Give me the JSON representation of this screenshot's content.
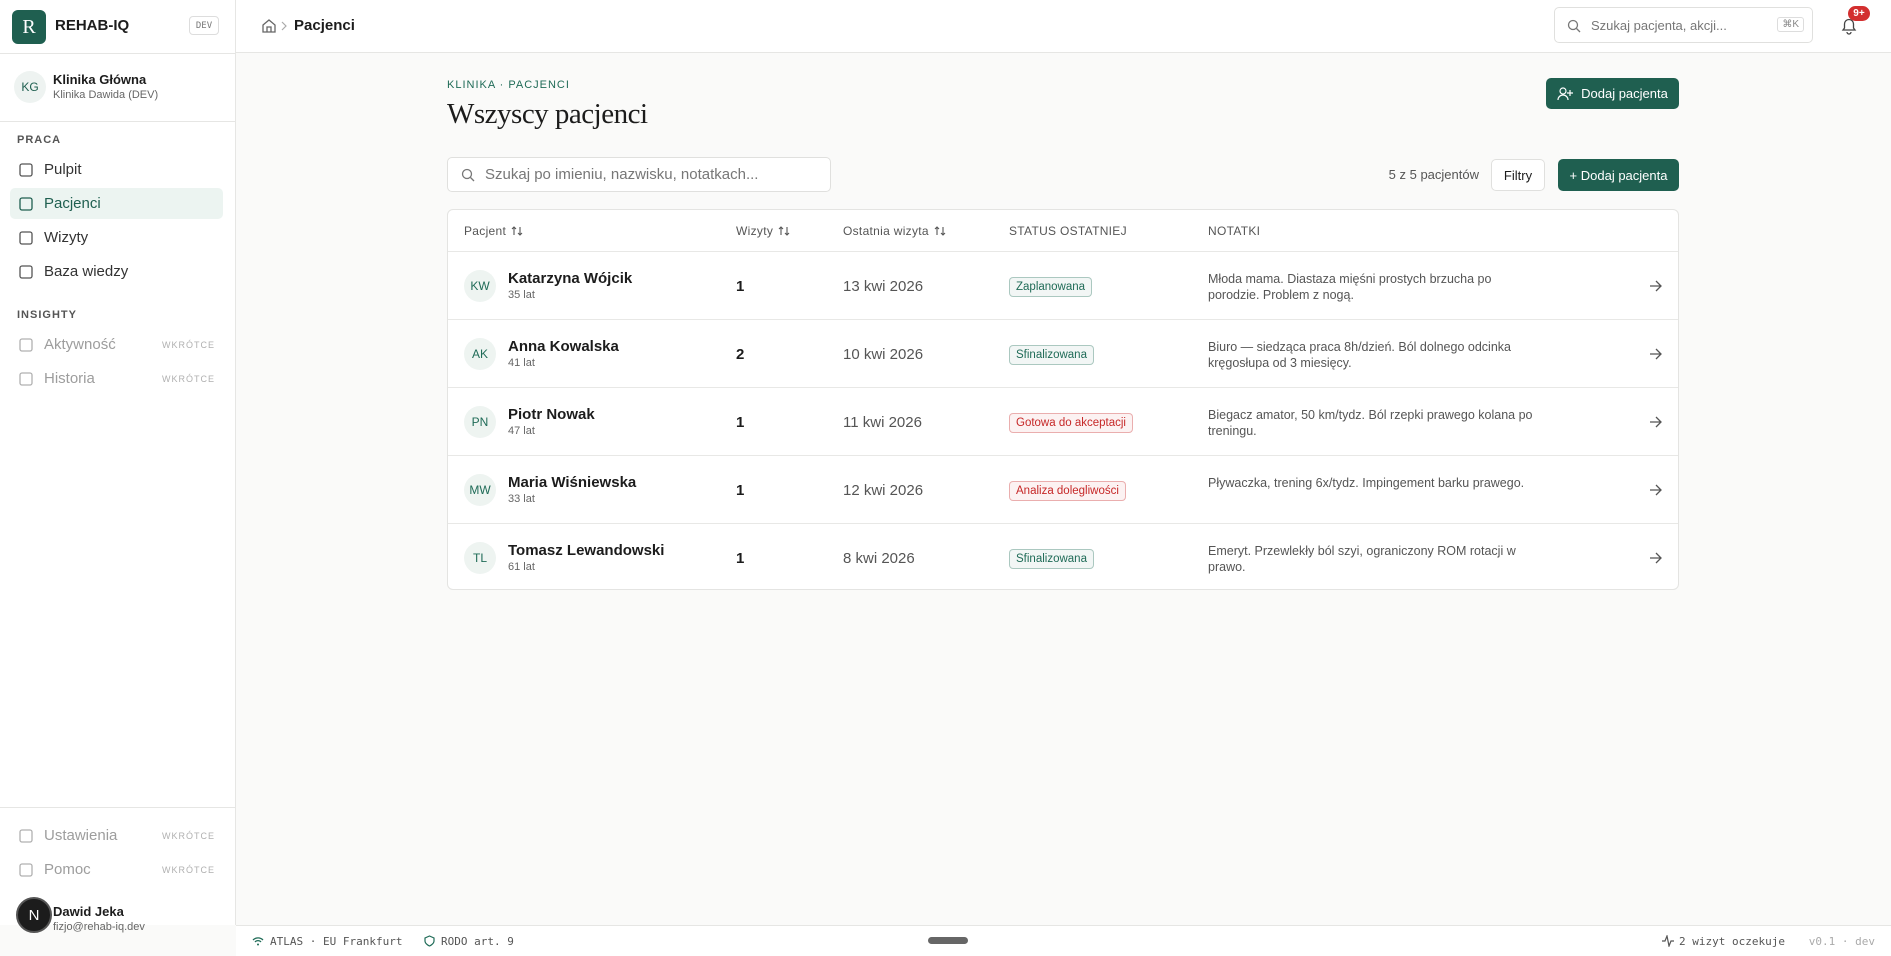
{
  "sidebar": {
    "logo": "R",
    "brand": "REHAB-IQ",
    "env": "DEV",
    "clinic": {
      "initials": "KG",
      "name": "Klinika Główna",
      "sub": "Klinika Dawida (DEV)"
    },
    "sections": [
      {
        "title": "PRACA",
        "items": [
          {
            "label": "Pulpit"
          },
          {
            "label": "Pacjenci",
            "active": true
          },
          {
            "label": "Wizyty"
          },
          {
            "label": "Baza wiedzy"
          }
        ]
      },
      {
        "title": "INSIGHTY",
        "items": [
          {
            "label": "Aktywność",
            "tag": "WKRÓTCE"
          },
          {
            "label": "Historia",
            "tag": "WKRÓTCE"
          }
        ]
      }
    ],
    "bottom": [
      {
        "label": "Ustawienia",
        "tag": "WKRÓTCE"
      },
      {
        "label": "Pomoc",
        "tag": "WKRÓTCE"
      }
    ],
    "user": {
      "avatar": "N",
      "name": "Dawid Jeka",
      "email": "fizjo@rehab-iq.dev"
    }
  },
  "header": {
    "breadcrumb": "Pacjenci",
    "search": "Szukaj pacjenta, akcji...",
    "shortcut": "⌘K",
    "badge": "9+"
  },
  "page": {
    "eyebrow": "KLINIKA · PACJENCI",
    "title": "Wszyscy pacjenci",
    "add_button": "Dodaj pacjenta",
    "search": "Szukaj po imieniu, nazwisku, notatkach...",
    "count": "5 z 5 pacjentów",
    "filters": "Filtry",
    "add_button_2": "+ Dodaj pacjenta"
  },
  "table": {
    "columns": [
      {
        "label": "Pacjent",
        "sortable": true
      },
      {
        "label": "Wizyty",
        "sortable": true
      },
      {
        "label": "Ostatnia wizyta",
        "sortable": true
      },
      {
        "label": "STATUS OSTATNIEJ"
      },
      {
        "label": "NOTATKI"
      }
    ],
    "rows": [
      {
        "initials": "KW",
        "name": "Katarzyna Wójcik",
        "age": "35 lat",
        "visits": 1,
        "last": "13 kwi 2026",
        "status": "Zaplanowana",
        "status_color": "#1f6b57",
        "notes": "Młoda mama. Diastaza mięśni prostych brzucha po porodzie. Problem z nogą."
      },
      {
        "initials": "AK",
        "name": "Anna Kowalska",
        "age": "41 lat",
        "visits": 2,
        "last": "10 kwi 2026",
        "status": "Sfinalizowana",
        "status_color": "#1f6b57",
        "notes": "Biuro — siedząca praca 8h/dzień. Ból dolnego odcinka kręgosłupa od 3 miesięcy."
      },
      {
        "initials": "PN",
        "name": "Piotr Nowak",
        "age": "47 lat",
        "visits": 1,
        "last": "11 kwi 2026",
        "status": "Gotowa do akceptacji",
        "status_color": "#c62828",
        "notes": "Biegacz amator, 50 km/tydz. Ból rzepki prawego kolana po treningu."
      },
      {
        "initials": "MW",
        "name": "Maria Wiśniewska",
        "age": "33 lat",
        "visits": 1,
        "last": "12 kwi 2026",
        "status": "Analiza dolegliwości",
        "status_color": "#c62828",
        "notes": "Pływaczka, trening 6x/tydz. Impingement barku prawego."
      },
      {
        "initials": "TL",
        "name": "Tomasz Lewandowski",
        "age": "61 lat",
        "visits": 1,
        "last": "8 kwi 2026",
        "status": "Sfinalizowana",
        "status_color": "#1f6b57",
        "notes": "Emeryt. Przewlekły ból szyi, ograniczony ROM rotacji w prawo."
      }
    ]
  },
  "status_bar": {
    "left": [
      "ATLAS · EU Frankfurt",
      "RODO art. 9"
    ],
    "right": [
      "2 wizyt oczekuje",
      "v0.1 · dev"
    ]
  }
}
